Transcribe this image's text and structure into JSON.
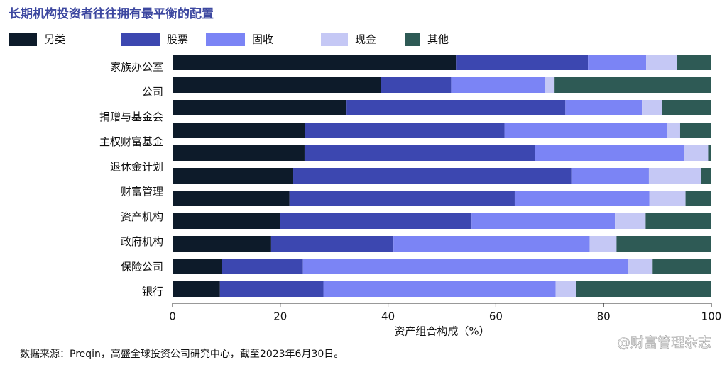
{
  "chart_data": {
    "type": "stacked_bar_horizontal",
    "title": "长期机构投资者往往拥有最平衡的配置",
    "categories": [
      "家族办公室",
      "公司",
      "捐赠与基金会",
      "主权财富基金",
      "退休金计划",
      "财富管理",
      null,
      "资产机构",
      "政府机构",
      "保险公司",
      "银行"
    ],
    "series": [
      {
        "name": "另类",
        "color": "#0d1b2a",
        "values": [
          52.6,
          38.7,
          32.3,
          24.6,
          24.5,
          22.4,
          21.7,
          19.9,
          18.3,
          9.2,
          8.8
        ]
      },
      {
        "name": "股票",
        "color": "#3c47b0",
        "values": [
          24.5,
          13.0,
          40.6,
          37.0,
          42.7,
          51.6,
          41.8,
          35.6,
          22.7,
          15.0,
          19.2
        ]
      },
      {
        "name": "固收",
        "color": "#7b84f5",
        "values": [
          10.8,
          17.5,
          14.2,
          30.2,
          27.7,
          14.4,
          25.0,
          26.6,
          36.4,
          60.3,
          43.1
        ]
      },
      {
        "name": "现金",
        "color": "#c5c8f5",
        "values": [
          5.7,
          1.7,
          3.7,
          2.4,
          4.5,
          9.7,
          6.7,
          5.7,
          5.0,
          4.6,
          3.8
        ]
      },
      {
        "name": "其他",
        "color": "#2e5a55",
        "values": [
          6.4,
          29.1,
          9.2,
          5.8,
          0.6,
          1.9,
          4.7,
          12.2,
          17.6,
          10.9,
          25.1
        ]
      }
    ],
    "xlabel": "资产组合构成（%）",
    "xlim": [
      0,
      100
    ],
    "xticks": [
      0,
      20,
      40,
      60,
      80,
      100
    ],
    "legend": "top",
    "source": "数据来源：Preqin，高盛全球投资公司研究中心，截至2023年6月30日。",
    "watermark": "@财富管理杂志"
  }
}
